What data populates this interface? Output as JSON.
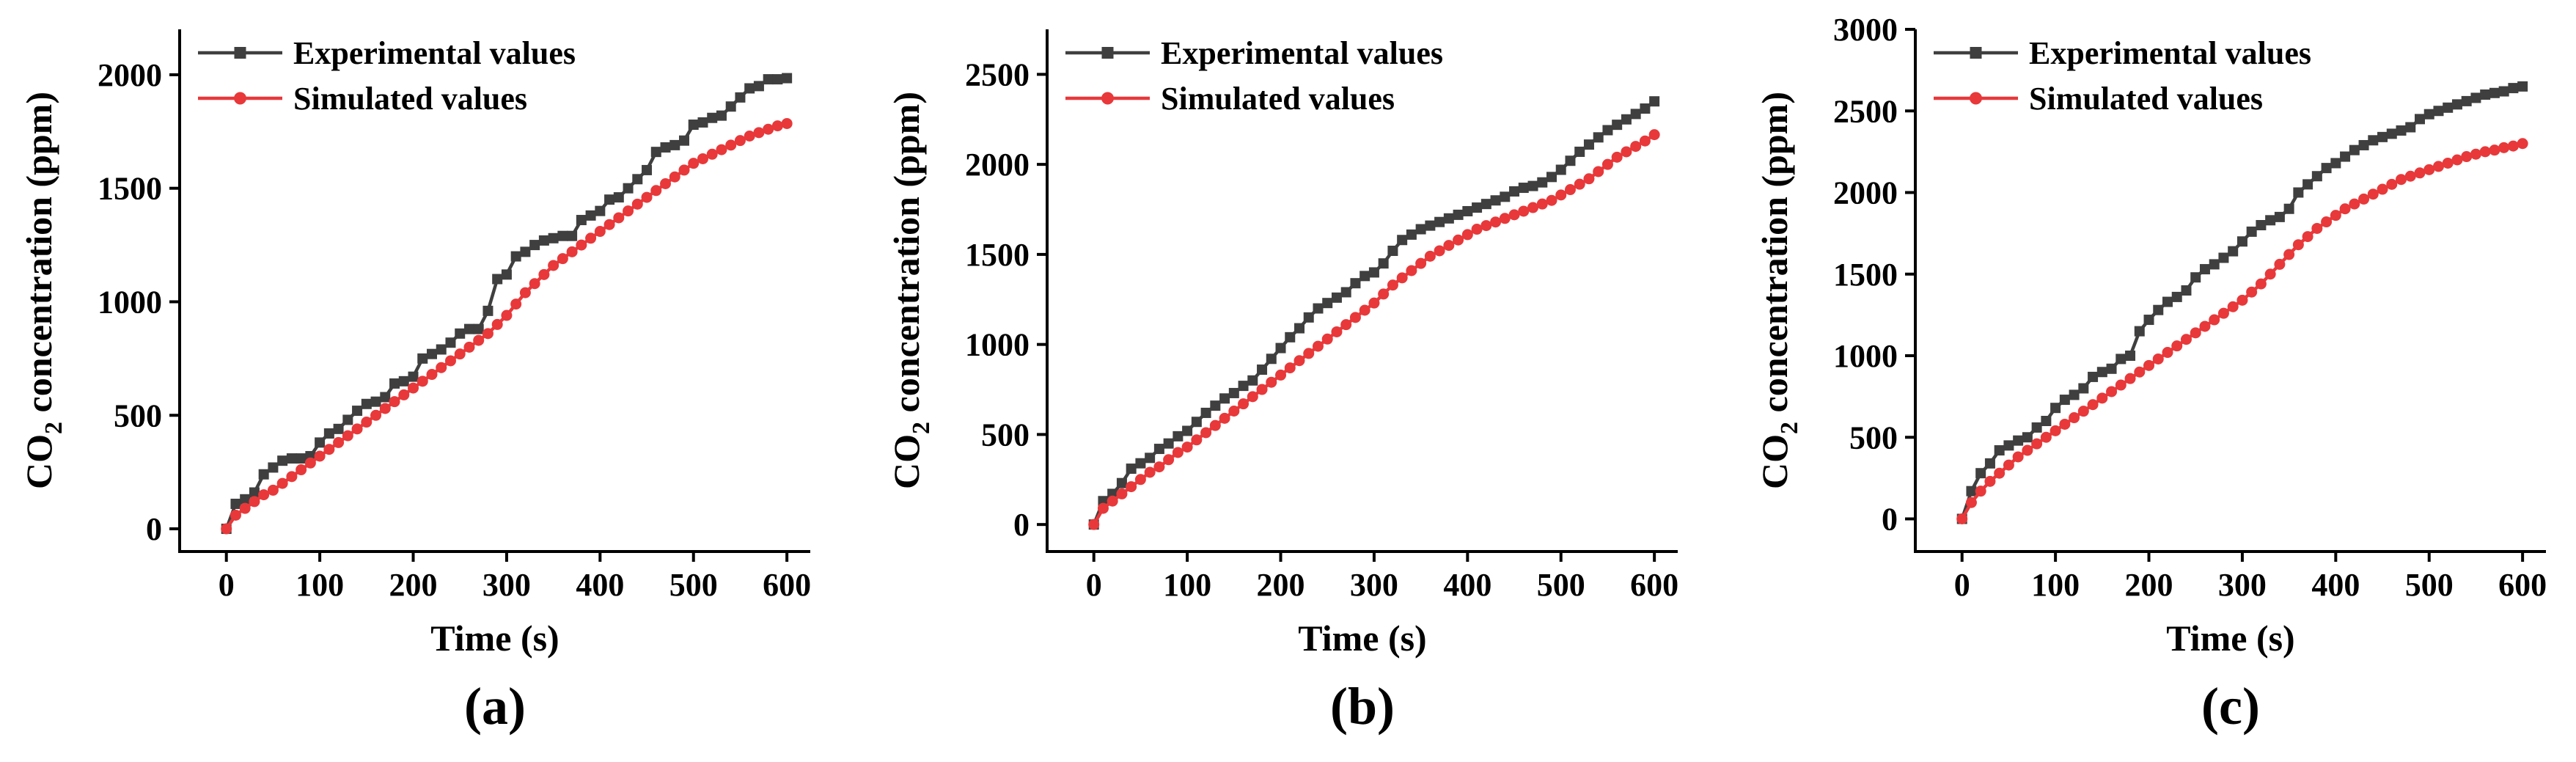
{
  "chart_data": [
    {
      "type": "line",
      "panel_label": "(a)",
      "xlabel": "Time (s)",
      "ylabel_main": "CO",
      "ylabel_sub": "2",
      "ylabel_rest": " concentration (ppm)",
      "xlim": [
        -50,
        625
      ],
      "ylim": [
        -100,
        2200
      ],
      "x_ticks": [
        0,
        100,
        200,
        300,
        400,
        500,
        600
      ],
      "y_ticks": [
        0,
        500,
        1000,
        1500,
        2000
      ],
      "series": [
        {
          "name": "Experimental values",
          "color": "#3f3f3f",
          "marker": "square",
          "x": [
            0,
            10,
            20,
            30,
            40,
            50,
            60,
            70,
            80,
            90,
            100,
            110,
            120,
            130,
            140,
            150,
            160,
            170,
            180,
            190,
            200,
            210,
            220,
            230,
            240,
            250,
            260,
            270,
            280,
            290,
            300,
            310,
            320,
            330,
            340,
            350,
            360,
            370,
            380,
            390,
            400,
            410,
            420,
            430,
            440,
            450,
            460,
            470,
            480,
            490,
            500,
            510,
            520,
            530,
            540,
            550,
            560,
            570,
            580,
            590,
            600
          ],
          "y": [
            0,
            110,
            130,
            160,
            240,
            270,
            300,
            310,
            310,
            320,
            380,
            420,
            440,
            480,
            520,
            550,
            560,
            580,
            640,
            650,
            670,
            750,
            770,
            790,
            820,
            860,
            880,
            880,
            960,
            1100,
            1120,
            1200,
            1220,
            1250,
            1270,
            1280,
            1290,
            1290,
            1360,
            1380,
            1400,
            1450,
            1460,
            1500,
            1540,
            1580,
            1660,
            1680,
            1690,
            1710,
            1780,
            1790,
            1810,
            1820,
            1860,
            1900,
            1940,
            1950,
            1980,
            1980,
            1985
          ]
        },
        {
          "name": "Simulated values",
          "color": "#e8383a",
          "marker": "circle",
          "x": [
            0,
            10,
            20,
            30,
            40,
            50,
            60,
            70,
            80,
            90,
            100,
            110,
            120,
            130,
            140,
            150,
            160,
            170,
            180,
            190,
            200,
            210,
            220,
            230,
            240,
            250,
            260,
            270,
            280,
            290,
            300,
            310,
            320,
            330,
            340,
            350,
            360,
            370,
            380,
            390,
            400,
            410,
            420,
            430,
            440,
            450,
            460,
            470,
            480,
            490,
            500,
            510,
            520,
            530,
            540,
            550,
            560,
            570,
            580,
            590,
            600
          ],
          "y": [
            0,
            60,
            90,
            120,
            150,
            170,
            200,
            230,
            260,
            290,
            320,
            350,
            380,
            410,
            440,
            470,
            500,
            530,
            560,
            590,
            620,
            650,
            680,
            710,
            740,
            770,
            800,
            830,
            860,
            900,
            940,
            990,
            1040,
            1080,
            1120,
            1160,
            1190,
            1220,
            1250,
            1280,
            1310,
            1340,
            1370,
            1400,
            1430,
            1460,
            1490,
            1520,
            1550,
            1580,
            1610,
            1630,
            1650,
            1670,
            1690,
            1710,
            1730,
            1745,
            1760,
            1775,
            1785
          ]
        }
      ]
    },
    {
      "type": "line",
      "panel_label": "(b)",
      "xlabel": "Time (s)",
      "ylabel_main": "CO",
      "ylabel_sub": "2",
      "ylabel_rest": " concentration (ppm)",
      "xlim": [
        -50,
        625
      ],
      "ylim": [
        -150,
        2750
      ],
      "x_ticks": [
        0,
        100,
        200,
        300,
        400,
        500,
        600
      ],
      "y_ticks": [
        0,
        500,
        1000,
        1500,
        2000,
        2500
      ],
      "series": [
        {
          "name": "Experimental values",
          "color": "#3f3f3f",
          "marker": "square",
          "x": [
            0,
            10,
            20,
            30,
            40,
            50,
            60,
            70,
            80,
            90,
            100,
            110,
            120,
            130,
            140,
            150,
            160,
            170,
            180,
            190,
            200,
            210,
            220,
            230,
            240,
            250,
            260,
            270,
            280,
            290,
            300,
            310,
            320,
            330,
            340,
            350,
            360,
            370,
            380,
            390,
            400,
            410,
            420,
            430,
            440,
            450,
            460,
            470,
            480,
            490,
            500,
            510,
            520,
            530,
            540,
            550,
            560,
            570,
            580,
            590,
            600
          ],
          "y": [
            0,
            130,
            170,
            230,
            310,
            340,
            370,
            420,
            450,
            490,
            520,
            570,
            620,
            660,
            700,
            730,
            770,
            800,
            860,
            920,
            980,
            1040,
            1090,
            1150,
            1200,
            1230,
            1260,
            1290,
            1340,
            1380,
            1400,
            1450,
            1520,
            1580,
            1610,
            1640,
            1660,
            1680,
            1700,
            1720,
            1740,
            1760,
            1780,
            1800,
            1820,
            1850,
            1870,
            1880,
            1900,
            1930,
            1970,
            2020,
            2070,
            2110,
            2150,
            2190,
            2220,
            2250,
            2280,
            2310,
            2350
          ]
        },
        {
          "name": "Simulated values",
          "color": "#e8383a",
          "marker": "circle",
          "x": [
            0,
            10,
            20,
            30,
            40,
            50,
            60,
            70,
            80,
            90,
            100,
            110,
            120,
            130,
            140,
            150,
            160,
            170,
            180,
            190,
            200,
            210,
            220,
            230,
            240,
            250,
            260,
            270,
            280,
            290,
            300,
            310,
            320,
            330,
            340,
            350,
            360,
            370,
            380,
            390,
            400,
            410,
            420,
            430,
            440,
            450,
            460,
            470,
            480,
            490,
            500,
            510,
            520,
            530,
            540,
            550,
            560,
            570,
            580,
            590,
            600
          ],
          "y": [
            0,
            90,
            130,
            170,
            210,
            250,
            290,
            320,
            360,
            400,
            430,
            470,
            510,
            550,
            590,
            630,
            670,
            710,
            750,
            790,
            830,
            870,
            910,
            950,
            990,
            1030,
            1070,
            1110,
            1150,
            1190,
            1230,
            1280,
            1330,
            1370,
            1410,
            1450,
            1490,
            1520,
            1550,
            1580,
            1610,
            1640,
            1660,
            1680,
            1700,
            1720,
            1740,
            1760,
            1780,
            1800,
            1830,
            1860,
            1890,
            1920,
            1960,
            2000,
            2040,
            2070,
            2100,
            2130,
            2165
          ]
        }
      ]
    },
    {
      "type": "line",
      "panel_label": "(c)",
      "xlabel": "Time (s)",
      "ylabel_main": "CO",
      "ylabel_sub": "2",
      "ylabel_rest": " concentration (ppm)",
      "xlim": [
        -50,
        625
      ],
      "ylim": [
        -200,
        3000
      ],
      "x_ticks": [
        0,
        100,
        200,
        300,
        400,
        500,
        600
      ],
      "y_ticks": [
        0,
        500,
        1000,
        1500,
        2000,
        2500,
        3000
      ],
      "series": [
        {
          "name": "Experimental values",
          "color": "#3f3f3f",
          "marker": "square",
          "x": [
            0,
            10,
            20,
            30,
            40,
            50,
            60,
            70,
            80,
            90,
            100,
            110,
            120,
            130,
            140,
            150,
            160,
            170,
            180,
            190,
            200,
            210,
            220,
            230,
            240,
            250,
            260,
            270,
            280,
            290,
            300,
            310,
            320,
            330,
            340,
            350,
            360,
            370,
            380,
            390,
            400,
            410,
            420,
            430,
            440,
            450,
            460,
            470,
            480,
            490,
            500,
            510,
            520,
            530,
            540,
            550,
            560,
            570,
            580,
            590,
            600
          ],
          "y": [
            0,
            170,
            280,
            340,
            420,
            450,
            480,
            500,
            560,
            600,
            680,
            730,
            760,
            800,
            870,
            900,
            920,
            980,
            1000,
            1150,
            1220,
            1280,
            1330,
            1360,
            1400,
            1480,
            1530,
            1560,
            1600,
            1640,
            1700,
            1760,
            1800,
            1830,
            1850,
            1900,
            2000,
            2050,
            2100,
            2150,
            2180,
            2220,
            2260,
            2290,
            2320,
            2340,
            2360,
            2380,
            2400,
            2450,
            2480,
            2500,
            2520,
            2540,
            2560,
            2580,
            2600,
            2610,
            2620,
            2640,
            2650
          ]
        },
        {
          "name": "Simulated values",
          "color": "#e8383a",
          "marker": "circle",
          "x": [
            0,
            10,
            20,
            30,
            40,
            50,
            60,
            70,
            80,
            90,
            100,
            110,
            120,
            130,
            140,
            150,
            160,
            170,
            180,
            190,
            200,
            210,
            220,
            230,
            240,
            250,
            260,
            270,
            280,
            290,
            300,
            310,
            320,
            330,
            340,
            350,
            360,
            370,
            380,
            390,
            400,
            410,
            420,
            430,
            440,
            450,
            460,
            470,
            480,
            490,
            500,
            510,
            520,
            530,
            540,
            550,
            560,
            570,
            580,
            590,
            600
          ],
          "y": [
            0,
            100,
            170,
            230,
            280,
            330,
            380,
            420,
            460,
            500,
            540,
            580,
            620,
            660,
            700,
            740,
            780,
            820,
            860,
            900,
            940,
            980,
            1020,
            1060,
            1100,
            1140,
            1180,
            1220,
            1260,
            1300,
            1340,
            1390,
            1440,
            1500,
            1560,
            1620,
            1680,
            1730,
            1780,
            1820,
            1860,
            1900,
            1930,
            1960,
            1990,
            2020,
            2050,
            2080,
            2100,
            2120,
            2140,
            2160,
            2180,
            2200,
            2220,
            2235,
            2250,
            2260,
            2275,
            2285,
            2300
          ]
        }
      ]
    }
  ]
}
